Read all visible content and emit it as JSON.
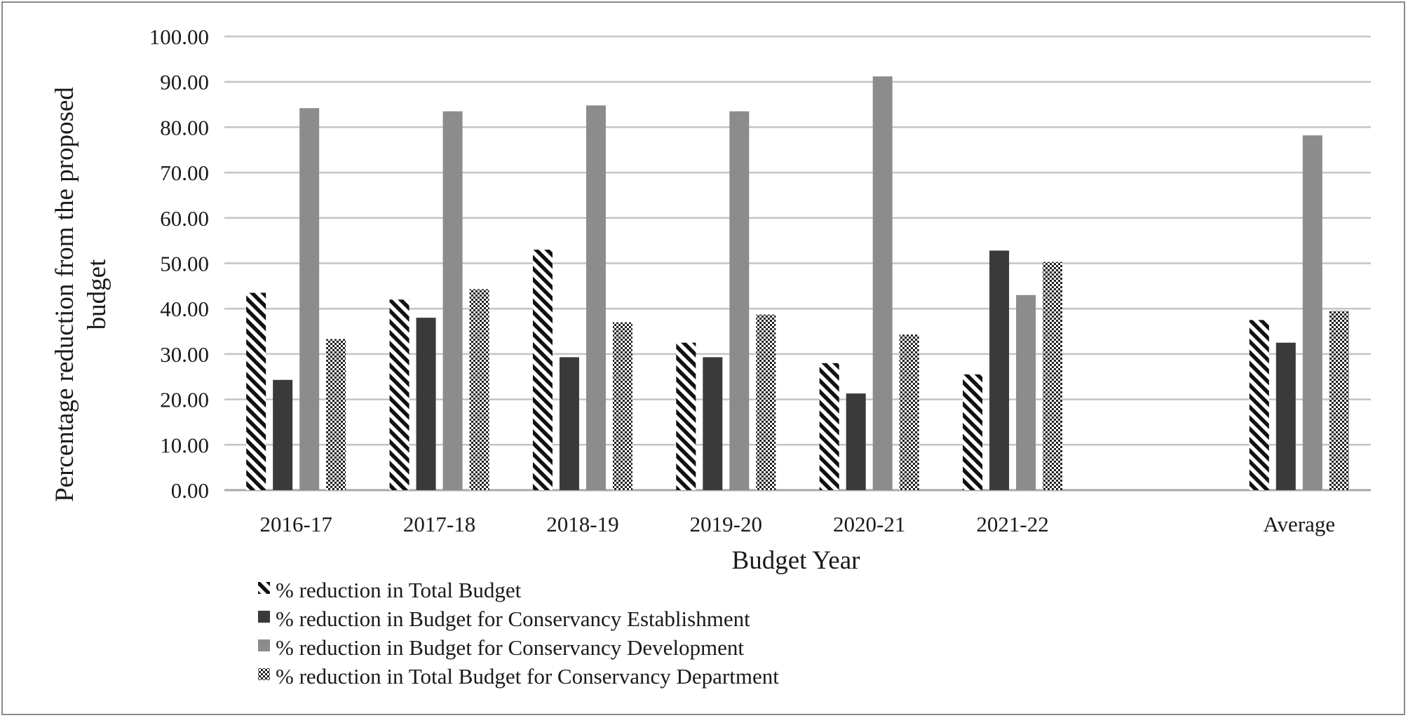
{
  "chart_data": {
    "type": "bar",
    "title": "",
    "xlabel": "Budget Year",
    "ylabel_lines": [
      "Percentage reduction from the proposed",
      "budget"
    ],
    "ylim": [
      0,
      100
    ],
    "yticks": [
      "0.00",
      "10.00",
      "20.00",
      "30.00",
      "40.00",
      "50.00",
      "60.00",
      "70.00",
      "80.00",
      "90.00",
      "100.00"
    ],
    "categories": [
      "2016-17",
      "2017-18",
      "2018-19",
      "2019-20",
      "2020-21",
      "2021-22",
      "",
      "Average"
    ],
    "grid": true,
    "legend_position": "bottom-left",
    "series": [
      {
        "name": "% reduction in Total Budget",
        "pattern": "diagonal-hatch",
        "color": "#1a1a1a",
        "values": [
          43.5,
          42.0,
          53.0,
          32.5,
          28.0,
          25.5,
          null,
          37.5
        ]
      },
      {
        "name": "% reduction in Budget for Conservancy Establishment",
        "pattern": "solid",
        "color": "#3a3a3a",
        "values": [
          24.3,
          38.0,
          29.3,
          29.3,
          21.3,
          52.8,
          null,
          32.5
        ]
      },
      {
        "name": "% reduction in Budget for Conservancy Development",
        "pattern": "solid",
        "color": "#8c8c8c",
        "values": [
          84.2,
          83.5,
          84.8,
          83.5,
          91.2,
          43.0,
          null,
          78.2
        ]
      },
      {
        "name": "% reduction in Total Budget for Conservancy Department",
        "pattern": "dots",
        "color": "#2a2a2a",
        "values": [
          33.3,
          44.3,
          37.0,
          38.7,
          34.3,
          50.3,
          null,
          39.5
        ]
      }
    ]
  }
}
